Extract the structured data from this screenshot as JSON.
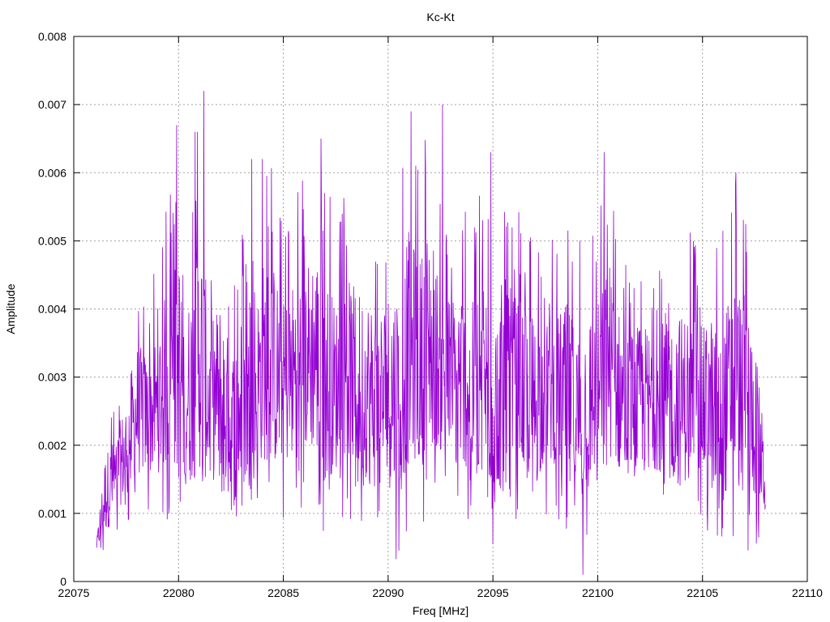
{
  "chart_data": {
    "type": "line",
    "title": "Kc-Kt",
    "xlabel": "Freq [MHz]",
    "ylabel": "Amplitude",
    "xlim": [
      22075,
      22110
    ],
    "ylim": [
      0,
      0.008
    ],
    "xticks": [
      "22075",
      "22080",
      "22085",
      "22090",
      "22095",
      "22100",
      "22105",
      "22110"
    ],
    "yticks": [
      "0",
      "0.001",
      "0.002",
      "0.003",
      "0.004",
      "0.005",
      "0.006",
      "0.007",
      "0.008"
    ],
    "grid": true,
    "line_color": "#9400d3",
    "x_range": [
      22076.1,
      22108.0
    ],
    "envelope": {
      "x": [
        22076.1,
        22076.5,
        22077.0,
        22077.5,
        22078.0,
        22078.5,
        22079.0,
        22079.5,
        22080.0,
        22080.5,
        22081.0,
        22081.5,
        22082.0,
        22082.5,
        22083.0,
        22083.5,
        22084.0,
        22084.5,
        22085.0,
        22085.5,
        22086.0,
        22086.5,
        22087.0,
        22087.5,
        22088.0,
        22088.5,
        22089.0,
        22089.5,
        22090.0,
        22090.5,
        22091.0,
        22091.5,
        22092.0,
        22092.5,
        22093.0,
        22093.5,
        22094.0,
        22094.5,
        22095.0,
        22095.5,
        22096.0,
        22096.5,
        22097.0,
        22097.5,
        22098.0,
        22098.5,
        22099.0,
        22099.5,
        22100.0,
        22100.5,
        22101.0,
        22101.5,
        22102.0,
        22102.5,
        22103.0,
        22103.5,
        22104.0,
        22104.5,
        22105.0,
        22105.5,
        22106.0,
        22106.5,
        22107.0,
        22107.5,
        22108.0
      ],
      "low": [
        0.0004,
        0.0003,
        0.0006,
        0.0008,
        0.0009,
        0.001,
        0.0009,
        0.0008,
        0.0003,
        0.0005,
        0.0004,
        0.0006,
        0.0008,
        0.0002,
        0.0005,
        0.0006,
        0.0008,
        0.0007,
        0.0009,
        0.0009,
        0.001,
        0.0009,
        0.0005,
        0.0008,
        0.001,
        0.0007,
        0.0006,
        0.0004,
        0.0004,
        0.0003,
        0.0006,
        0.0008,
        0.001,
        0.0011,
        0.0008,
        0.0009,
        0.0007,
        0.0005,
        0.0004,
        0.0004,
        0.0006,
        0.0008,
        0.0005,
        0.0009,
        0.001,
        0.0003,
        0.0002,
        0.0006,
        0.0008,
        0.0009,
        0.0008,
        0.0009,
        0.0007,
        0.001,
        0.0009,
        0.0007,
        0.0005,
        0.0009,
        0.0008,
        0.0004,
        0.0003,
        0.0005,
        0.0002,
        0.0005,
        0.0006
      ],
      "high": [
        0.0007,
        0.0025,
        0.0027,
        0.0034,
        0.0045,
        0.0042,
        0.0047,
        0.0058,
        0.0067,
        0.0055,
        0.0072,
        0.005,
        0.0054,
        0.0046,
        0.0052,
        0.0048,
        0.0062,
        0.0062,
        0.0053,
        0.0058,
        0.006,
        0.0065,
        0.0061,
        0.0053,
        0.0058,
        0.0056,
        0.0057,
        0.0053,
        0.0058,
        0.006,
        0.0069,
        0.0062,
        0.007,
        0.0055,
        0.0055,
        0.0057,
        0.0053,
        0.0063,
        0.0052,
        0.006,
        0.0056,
        0.0053,
        0.0052,
        0.0056,
        0.005,
        0.0055,
        0.0051,
        0.0052,
        0.0053,
        0.0063,
        0.0052,
        0.0047,
        0.0049,
        0.0048,
        0.0048,
        0.0055,
        0.0052,
        0.0052,
        0.0048,
        0.0053,
        0.0052,
        0.006,
        0.0057,
        0.0047,
        0.0025
      ]
    },
    "peaks": [
      {
        "x": 22079.9,
        "y": 0.0067
      },
      {
        "x": 22080.8,
        "y": 0.0066
      },
      {
        "x": 22081.2,
        "y": 0.0072
      },
      {
        "x": 22083.5,
        "y": 0.0062
      },
      {
        "x": 22084.0,
        "y": 0.0062
      },
      {
        "x": 22086.8,
        "y": 0.0065
      },
      {
        "x": 22091.1,
        "y": 0.0069
      },
      {
        "x": 22092.6,
        "y": 0.007
      },
      {
        "x": 22094.9,
        "y": 0.0063
      },
      {
        "x": 22100.3,
        "y": 0.0063
      },
      {
        "x": 22106.6,
        "y": 0.006
      },
      {
        "x": 22099.3,
        "y": 0.0001
      }
    ]
  }
}
